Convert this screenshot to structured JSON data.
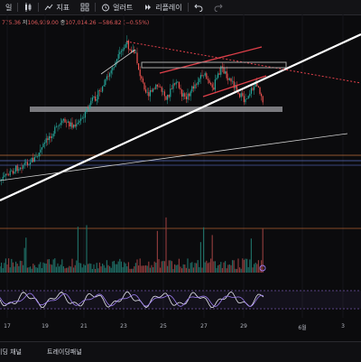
{
  "toolbar": {
    "interval_label": "일",
    "indicators_label": "지표",
    "alert_label": "얼러트",
    "replay_label": "리플레이"
  },
  "ohlc": {
    "h_label": "",
    "h_value": "775.36",
    "l_label": "저",
    "l_value": "106,939.00",
    "c_label": "종",
    "c_value": "107,014.26",
    "change": "−586.82 (−0.55%)"
  },
  "time_axis": {
    "ticks": [
      "17",
      "19",
      "21",
      "23",
      "25",
      "27",
      "29",
      "6월",
      "3"
    ]
  },
  "bottom_bar": {
    "tab_1": "이딩 채널",
    "tab_2": "트레이딩패널"
  },
  "colors": {
    "up": "#26a69a",
    "down": "#ef5350",
    "trendline": "#ffffff",
    "resistance": "#e0404a",
    "support_box": "#b0b0b0",
    "oscillator": "#9c7cf0"
  }
}
